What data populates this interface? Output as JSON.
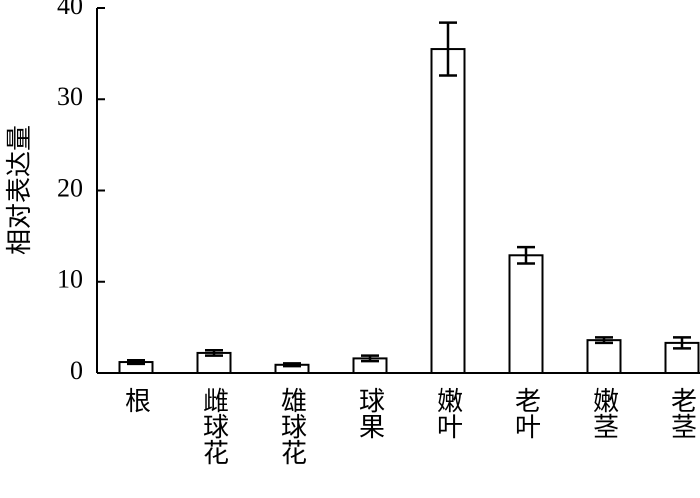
{
  "chart_data": {
    "type": "bar",
    "y_label": "相对表达量",
    "categories": [
      "根",
      "雌球花",
      "雄球花",
      "球果",
      "嫩叶",
      "老叶",
      "嫩茎",
      "老茎"
    ],
    "values": [
      1.2,
      2.2,
      0.9,
      1.6,
      35.5,
      12.9,
      3.6,
      3.3
    ],
    "errors": [
      0.2,
      0.3,
      0.15,
      0.3,
      2.9,
      0.9,
      0.3,
      0.6
    ],
    "color": "#ffffff",
    "ylim": [
      0,
      40
    ],
    "yticks": [
      0,
      10,
      20,
      30,
      40
    ],
    "grid": false
  }
}
